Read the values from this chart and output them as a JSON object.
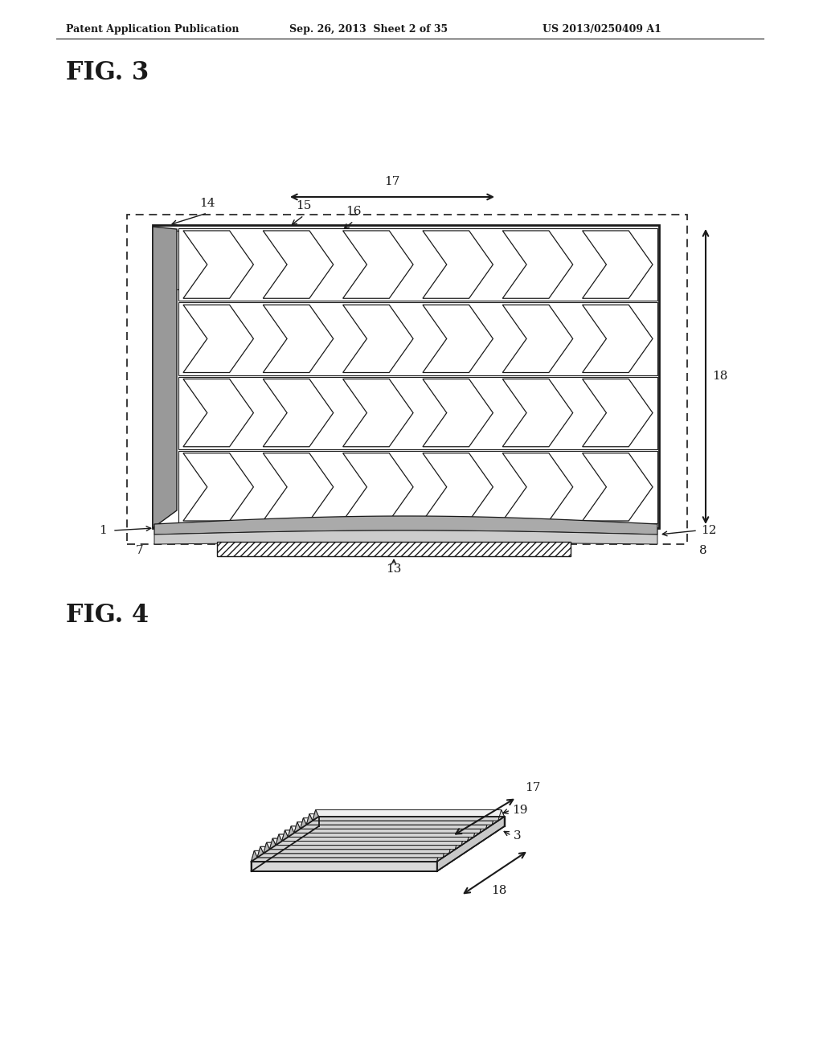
{
  "bg_color": "#ffffff",
  "header_left": "Patent Application Publication",
  "header_center": "Sep. 26, 2013  Sheet 2 of 35",
  "header_right": "US 2013/0250409 A1",
  "fig3_label": "FIG. 3",
  "fig4_label": "FIG. 4",
  "lc": "#1a1a1a"
}
